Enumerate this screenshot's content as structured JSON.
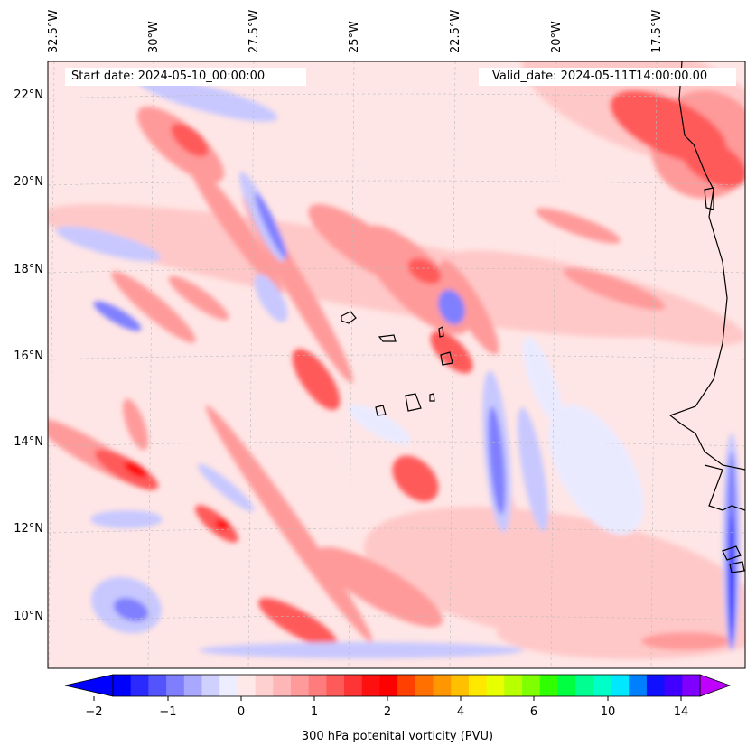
{
  "map": {
    "start_date": "Start date: 2024-05-10_00:00:00",
    "valid_date": "Valid_date: 2024-05-11T14:00:00.00",
    "longitude_labels": [
      "32.5°W",
      "30°W",
      "27.5°W",
      "25°W",
      "22.5°W",
      "20°W",
      "17.5°W"
    ],
    "latitude_labels": [
      "22°N",
      "20°N",
      "18°N",
      "16°N",
      "14°N",
      "12°N",
      "10°N"
    ]
  },
  "colorbar": {
    "label": "300 hPa potenital vorticity (PVU)",
    "tick_labels": [
      "−2",
      "−1",
      "0",
      "1",
      "2",
      "4",
      "6",
      "10",
      "14"
    ],
    "colors": [
      "#0000ff",
      "#2a2aff",
      "#5454ff",
      "#7e7eff",
      "#a8a8ff",
      "#d0d0ff",
      "#ecedff",
      "#ffe8e8",
      "#ffd0d0",
      "#ffb6b6",
      "#ff9a9a",
      "#ff7c7c",
      "#ff5a5a",
      "#ff3434",
      "#ff1010",
      "#ff0000",
      "#ff4000",
      "#ff7000",
      "#ff9800",
      "#ffc000",
      "#ffe800",
      "#e8ff00",
      "#b8ff00",
      "#80ff00",
      "#30ff00",
      "#00ff40",
      "#00ff90",
      "#00ffc8",
      "#00e8ff",
      "#0080ff",
      "#1010ff",
      "#4000ff",
      "#8000ff"
    ],
    "extend_min_color": "#0000ff",
    "extend_max_color": "#c000ff"
  },
  "field_colors": {
    "background": "#ffe6e6",
    "light_red": "#ffc8c8",
    "red": "#ff9a9a",
    "strong_red": "#ff5a5a",
    "max_red": "#ff1010",
    "light_blue": "#eaeaff",
    "blue": "#c8c8ff",
    "strong_blue": "#8080ff",
    "deep_blue": "#3030ff"
  }
}
